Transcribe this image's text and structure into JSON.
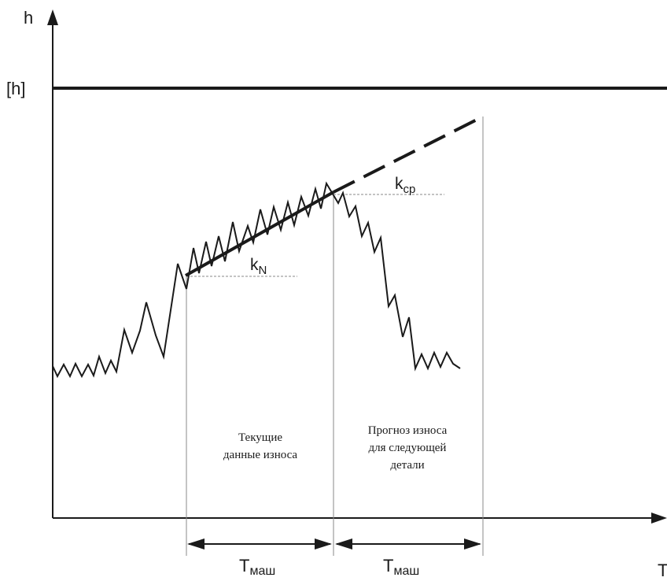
{
  "axes": {
    "y_label": "h",
    "limit_label": "[h]",
    "x_label": "T"
  },
  "slopes": {
    "current": {
      "base": "k",
      "sub": "N"
    },
    "average": {
      "base": "k",
      "sub": "ср"
    }
  },
  "regions": {
    "current": {
      "line1": "Текущие",
      "line2": "данные износа"
    },
    "forecast": {
      "line1": "Прогноз износа",
      "line2": "для следующей",
      "line3": "детали"
    }
  },
  "intervals": {
    "first": {
      "base": "T",
      "sub": "маш"
    },
    "second": {
      "base": "T",
      "sub": "маш"
    }
  },
  "colors": {
    "line": "#1a1a1a",
    "guide": "#8a8a8a"
  }
}
